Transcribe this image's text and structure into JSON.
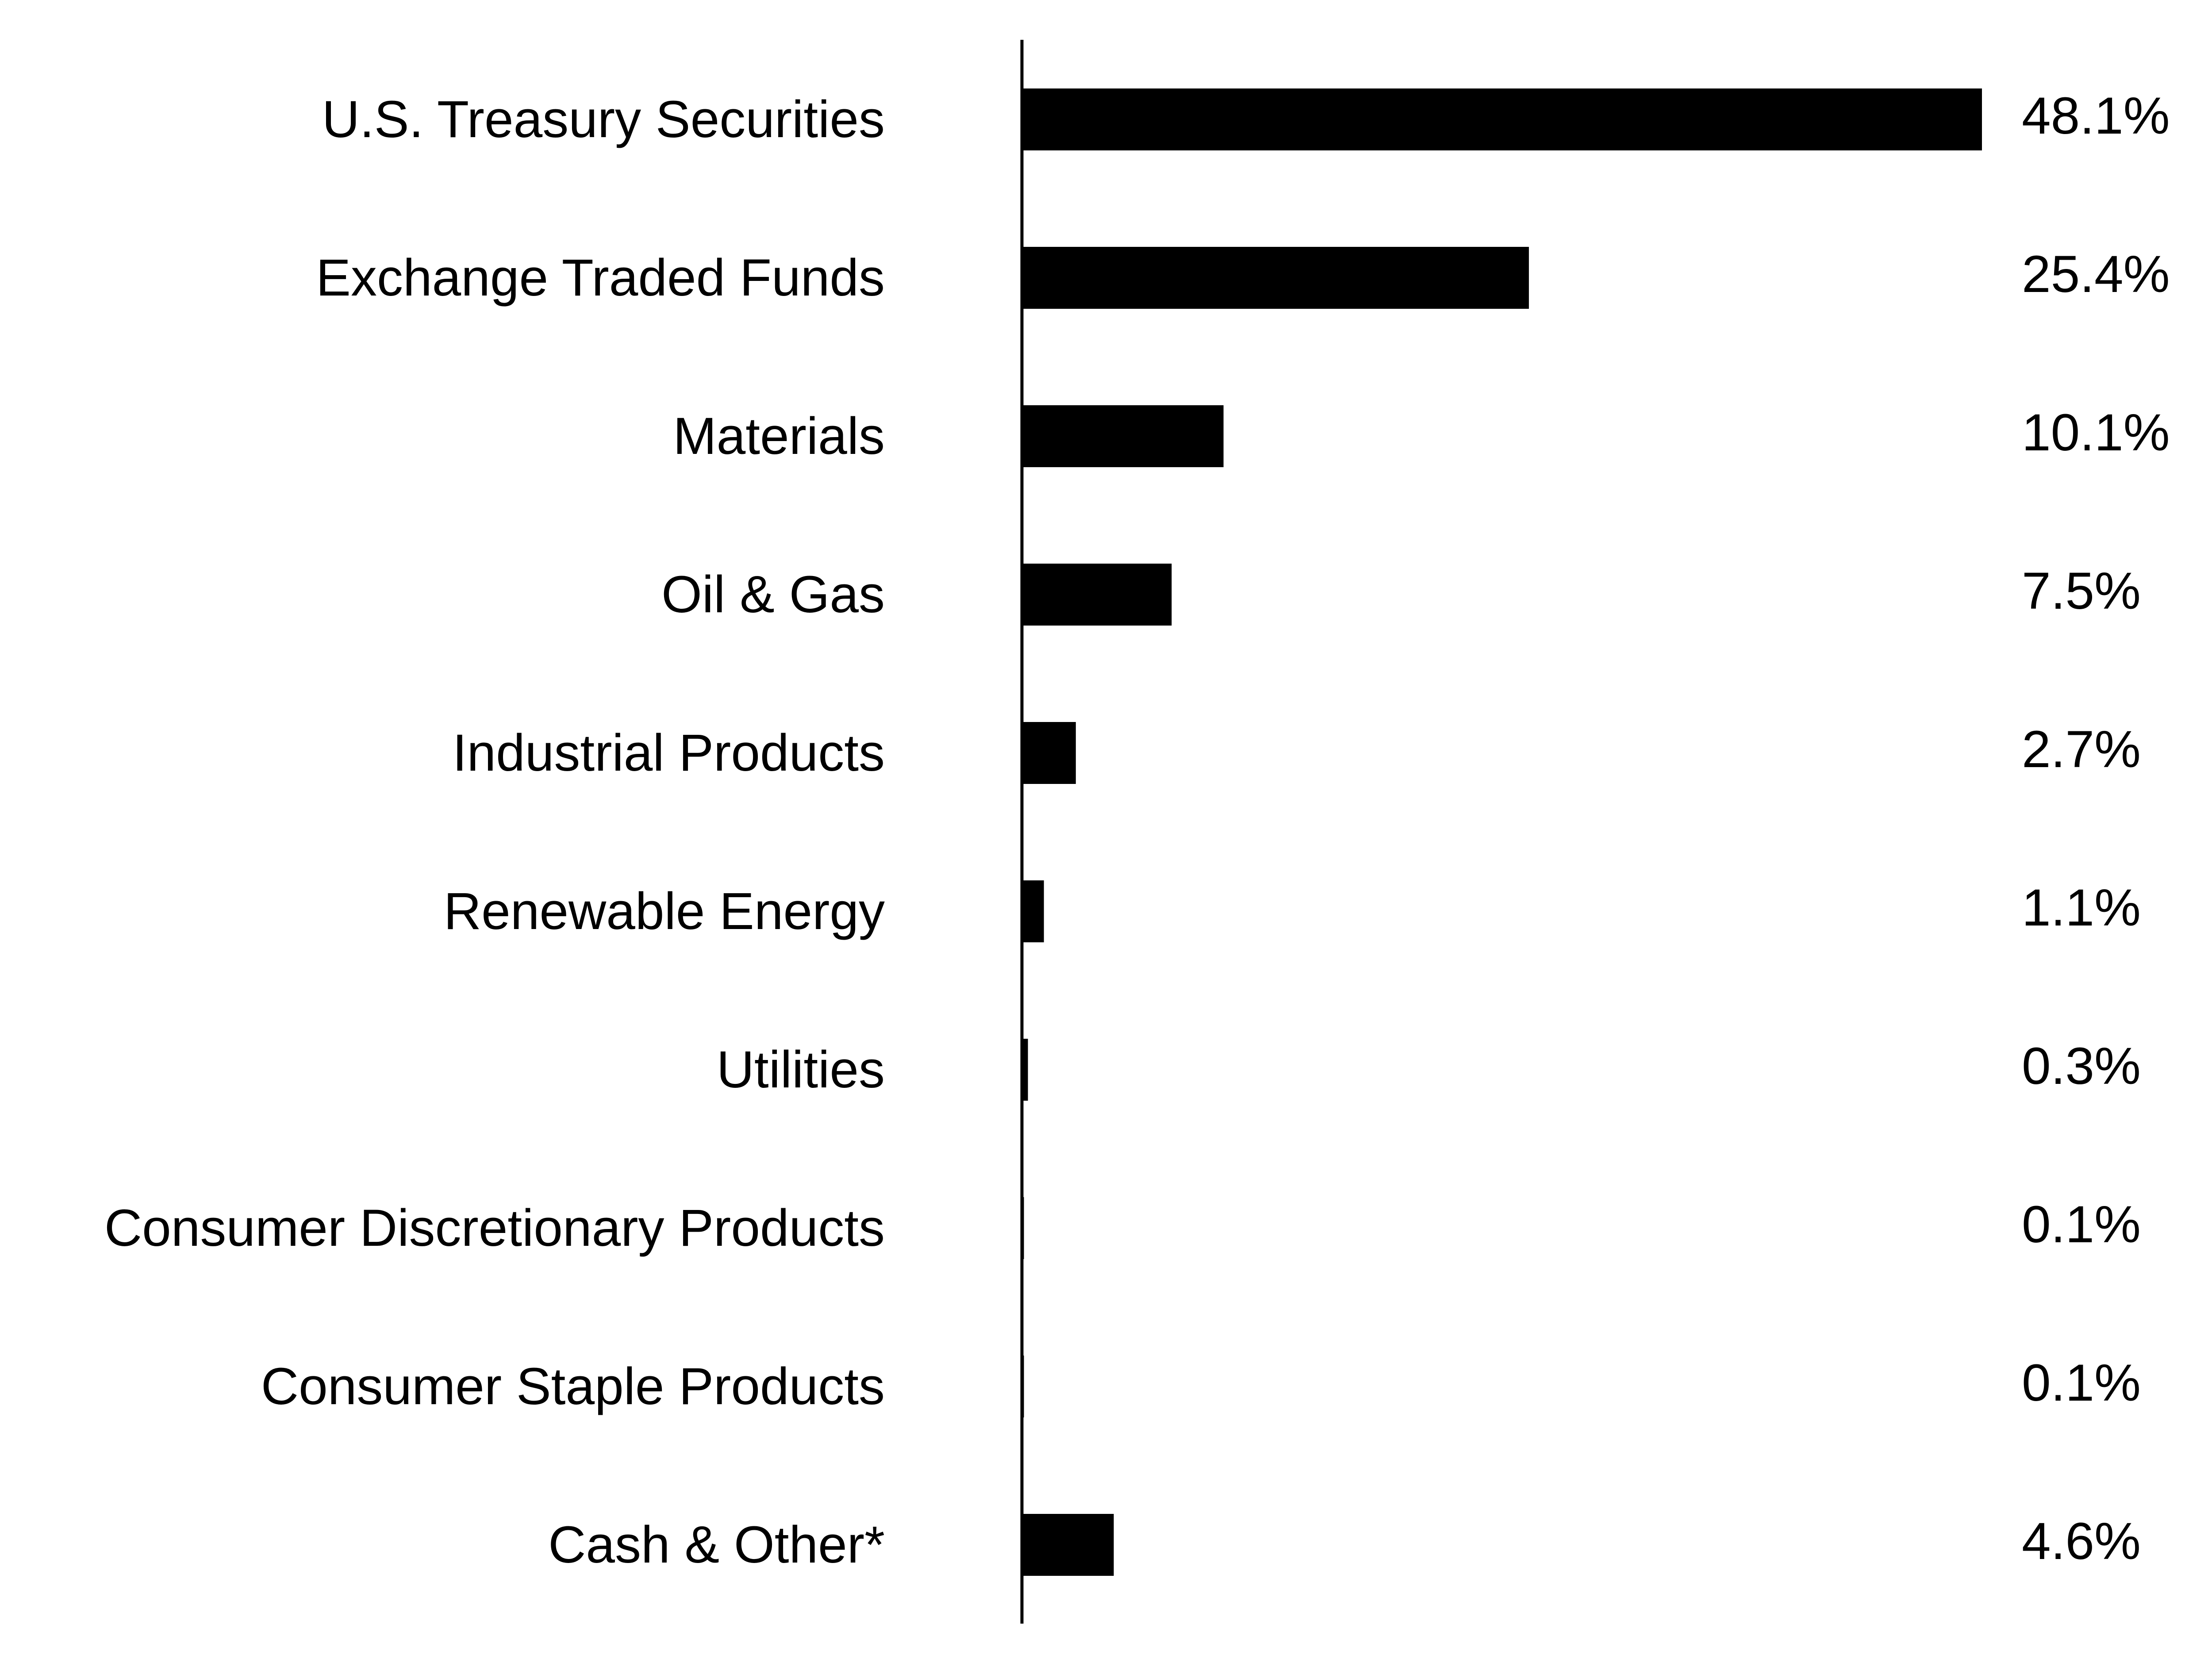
{
  "chart_data": {
    "type": "bar",
    "orientation": "horizontal",
    "categories": [
      "U.S. Treasury Securities",
      "Exchange Traded Funds",
      "Materials",
      "Oil & Gas",
      "Industrial Products",
      "Renewable Energy",
      "Utilities",
      "Consumer Discretionary Products",
      "Consumer Staple Products",
      "Cash & Other*"
    ],
    "values": [
      48.1,
      25.4,
      10.1,
      7.5,
      2.7,
      1.1,
      0.3,
      0.1,
      0.1,
      4.6
    ],
    "value_labels": [
      "48.1%",
      "25.4%",
      "10.1%",
      "7.5%",
      "2.7%",
      "1.1%",
      "0.3%",
      "0.1%",
      "0.1%",
      "4.6%"
    ],
    "title": "",
    "xlabel": "",
    "ylabel": "",
    "xlim": [
      0,
      48.1
    ],
    "grid": false,
    "legend": "none",
    "colors": {
      "bar": "#000000",
      "axis": "#000000",
      "text": "#000000",
      "background": "#ffffff"
    }
  }
}
